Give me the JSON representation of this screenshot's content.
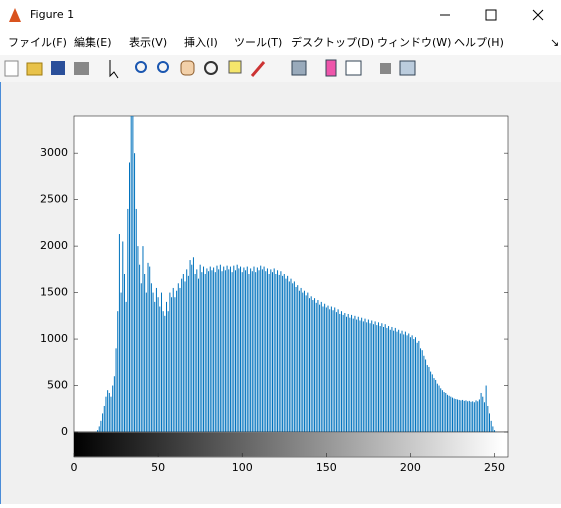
{
  "window": {
    "title": "Figure 1",
    "menu": [
      "ファイル(F)",
      "編集(E)",
      "表示(V)",
      "挿入(I)",
      "ツール(T)",
      "デスクトップ(D)",
      "ウィンドウ(W)",
      "ヘルプ(H)"
    ]
  },
  "chart_data": {
    "type": "bar",
    "color": "#0072bd",
    "x": [
      0,
      1,
      2,
      3,
      4,
      5,
      6,
      7,
      8,
      9,
      10,
      11,
      12,
      13,
      14,
      15,
      16,
      17,
      18,
      19,
      20,
      21,
      22,
      23,
      24,
      25,
      26,
      27,
      28,
      29,
      30,
      31,
      32,
      33,
      34,
      35,
      36,
      37,
      38,
      39,
      40,
      41,
      42,
      43,
      44,
      45,
      46,
      47,
      48,
      49,
      50,
      51,
      52,
      53,
      54,
      55,
      56,
      57,
      58,
      59,
      60,
      61,
      62,
      63,
      64,
      65,
      66,
      67,
      68,
      69,
      70,
      71,
      72,
      73,
      74,
      75,
      76,
      77,
      78,
      79,
      80,
      81,
      82,
      83,
      84,
      85,
      86,
      87,
      88,
      89,
      90,
      91,
      92,
      93,
      94,
      95,
      96,
      97,
      98,
      99,
      100,
      101,
      102,
      103,
      104,
      105,
      106,
      107,
      108,
      109,
      110,
      111,
      112,
      113,
      114,
      115,
      116,
      117,
      118,
      119,
      120,
      121,
      122,
      123,
      124,
      125,
      126,
      127,
      128,
      129,
      130,
      131,
      132,
      133,
      134,
      135,
      136,
      137,
      138,
      139,
      140,
      141,
      142,
      143,
      144,
      145,
      146,
      147,
      148,
      149,
      150,
      151,
      152,
      153,
      154,
      155,
      156,
      157,
      158,
      159,
      160,
      161,
      162,
      163,
      164,
      165,
      166,
      167,
      168,
      169,
      170,
      171,
      172,
      173,
      174,
      175,
      176,
      177,
      178,
      179,
      180,
      181,
      182,
      183,
      184,
      185,
      186,
      187,
      188,
      189,
      190,
      191,
      192,
      193,
      194,
      195,
      196,
      197,
      198,
      199,
      200,
      201,
      202,
      203,
      204,
      205,
      206,
      207,
      208,
      209,
      210,
      211,
      212,
      213,
      214,
      215,
      216,
      217,
      218,
      219,
      220,
      221,
      222,
      223,
      224,
      225,
      226,
      227,
      228,
      229,
      230,
      231,
      232,
      233,
      234,
      235,
      236,
      237,
      238,
      239,
      240,
      241,
      242,
      243,
      244,
      245,
      246,
      247,
      248,
      249,
      250,
      251,
      252,
      253,
      254,
      255
    ],
    "values": [
      0,
      0,
      0,
      0,
      0,
      0,
      0,
      0,
      0,
      0,
      0,
      0,
      0,
      5,
      20,
      60,
      120,
      200,
      280,
      380,
      450,
      420,
      380,
      500,
      600,
      900,
      1300,
      2130,
      1500,
      2050,
      1700,
      1400,
      2400,
      2900,
      3500,
      3500,
      3000,
      2400,
      2000,
      1800,
      1600,
      2000,
      1700,
      1500,
      1820,
      1780,
      1600,
      1500,
      1400,
      1550,
      1450,
      1350,
      1500,
      1300,
      1250,
      1400,
      1300,
      1500,
      1450,
      1550,
      1450,
      1520,
      1600,
      1550,
      1650,
      1700,
      1620,
      1750,
      1680,
      1850,
      1800,
      1880,
      1700,
      1750,
      1650,
      1800,
      1720,
      1780,
      1700,
      1760,
      1730,
      1780,
      1740,
      1770,
      1720,
      1790,
      1750,
      1800,
      1730,
      1780,
      1740,
      1790,
      1750,
      1780,
      1720,
      1790,
      1740,
      1800,
      1760,
      1780,
      1720,
      1770,
      1740,
      1780,
      1700,
      1760,
      1730,
      1780,
      1720,
      1770,
      1740,
      1790,
      1750,
      1780,
      1730,
      1760,
      1700,
      1750,
      1720,
      1760,
      1700,
      1740,
      1690,
      1730,
      1680,
      1700,
      1650,
      1680,
      1620,
      1650,
      1600,
      1620,
      1560,
      1580,
      1520,
      1550,
      1500,
      1520,
      1470,
      1500,
      1440,
      1460,
      1420,
      1440,
      1390,
      1420,
      1370,
      1400,
      1350,
      1380,
      1340,
      1360,
      1320,
      1350,
      1310,
      1340,
      1290,
      1320,
      1270,
      1300,
      1260,
      1280,
      1240,
      1270,
      1230,
      1260,
      1220,
      1250,
      1210,
      1240,
      1200,
      1230,
      1190,
      1220,
      1180,
      1210,
      1170,
      1200,
      1160,
      1190,
      1150,
      1180,
      1140,
      1170,
      1130,
      1160,
      1120,
      1140,
      1100,
      1130,
      1090,
      1120,
      1080,
      1100,
      1060,
      1090,
      1050,
      1080,
      1040,
      1060,
      1020,
      1040,
      1000,
      1020,
      960,
      980,
      900,
      880,
      820,
      780,
      720,
      700,
      650,
      620,
      580,
      560,
      520,
      500,
      470,
      450,
      430,
      420,
      400,
      390,
      380,
      370,
      360,
      355,
      350,
      345,
      340,
      345,
      335,
      340,
      330,
      335,
      325,
      330,
      320,
      340,
      330,
      350,
      420,
      380,
      320,
      500,
      280,
      200,
      120,
      60,
      20,
      5,
      0,
      0,
      0,
      0
    ],
    "xlim": [
      0,
      258
    ],
    "xticks": [
      0,
      50,
      100,
      150,
      200,
      250
    ],
    "ylim": [
      0,
      3400
    ],
    "yticks": [
      0,
      500,
      1000,
      1500,
      2000,
      2500,
      3000
    ]
  }
}
